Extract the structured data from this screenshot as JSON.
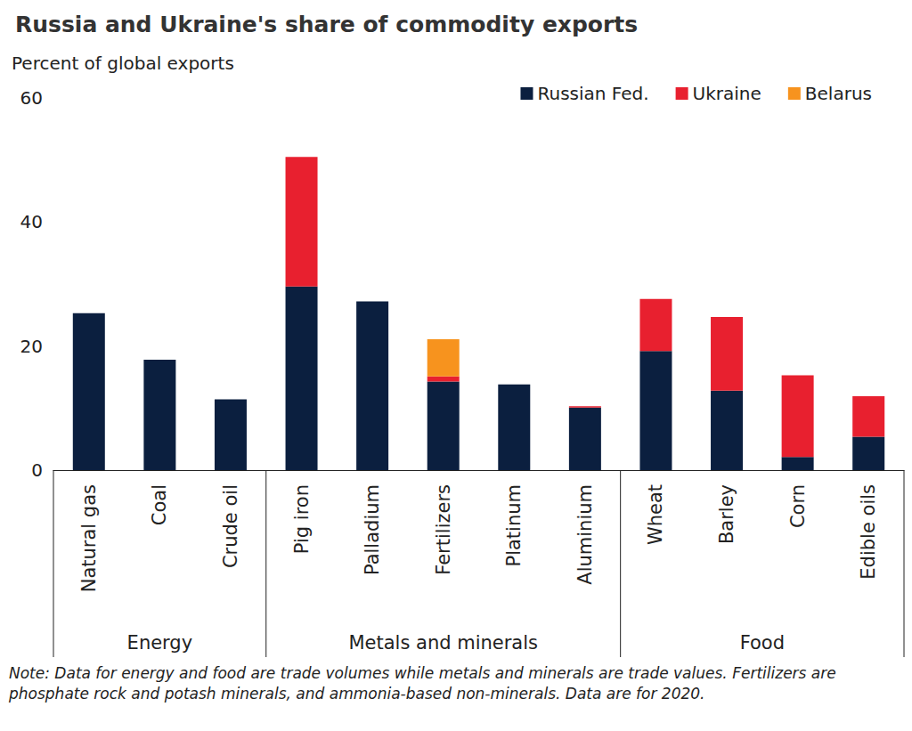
{
  "chart_data": {
    "type": "bar",
    "title": "Russia and Ukraine's share of commodity exports",
    "subtitle": "Percent of global exports",
    "note": "Note: Data for energy and food are trade volumes while metals and minerals are trade values. Fertilizers are phosphate rock and potash minerals, and ammonia-based non-minerals. Data are for 2020.",
    "categories": [
      "Natural gas",
      "Coal",
      "Crude oil",
      "Pig iron",
      "Palladium",
      "Fertilizers",
      "Platinum",
      "Aluminium",
      "Wheat",
      "Barley",
      "Corn",
      "Edible oils"
    ],
    "groups": [
      "Energy",
      "Energy",
      "Energy",
      "Metals and minerals",
      "Metals and minerals",
      "Metals and minerals",
      "Metals and minerals",
      "Metals and minerals",
      "Food",
      "Food",
      "Food",
      "Food"
    ],
    "series": [
      {
        "name": "Russian Fed.",
        "color": "#0b1f3f",
        "values": [
          25.3,
          17.8,
          11.4,
          29.6,
          27.2,
          14.3,
          13.8,
          10.1,
          19.2,
          12.8,
          2.1,
          5.4
        ]
      },
      {
        "name": "Ukraine",
        "color": "#e8202f",
        "values": [
          0,
          0,
          0,
          20.9,
          0,
          0.8,
          0,
          0.2,
          8.4,
          11.9,
          13.2,
          6.5
        ]
      },
      {
        "name": "Belarus",
        "color": "#f7931e",
        "values": [
          0,
          0,
          0,
          0,
          0,
          6.0,
          0,
          0,
          0,
          0,
          0,
          0
        ]
      }
    ],
    "stacked": true,
    "ylim": [
      0,
      60
    ],
    "yticks": [
      0,
      20,
      40,
      60
    ],
    "grid": false,
    "legend": "top-right",
    "data_labels": false
  }
}
